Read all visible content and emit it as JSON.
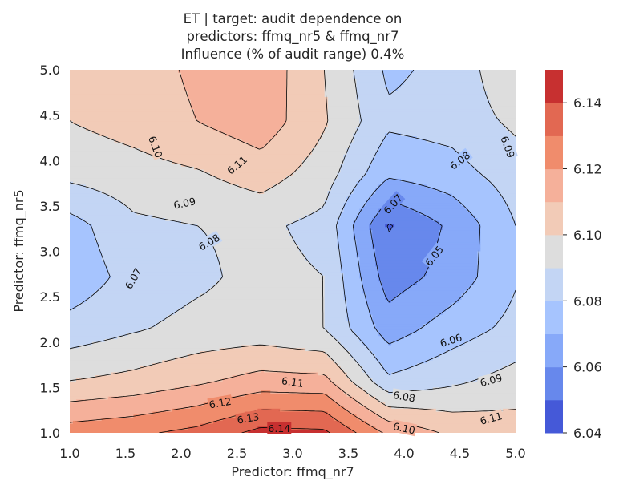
{
  "chart_data": {
    "type": "contour",
    "title": [
      "ET | target: audit dependence on",
      "predictors: ffmq_nr5 & ffmq_nr7",
      "Influence (% of audit range) 0.4%"
    ],
    "xlabel": "Predictor: ffmq_nr7",
    "ylabel": "Predictor: ffmq_nr5",
    "xlim": [
      1.0,
      5.0
    ],
    "ylim": [
      1.0,
      5.0
    ],
    "xticks": [
      "1.0",
      "1.5",
      "2.0",
      "2.5",
      "3.0",
      "3.5",
      "4.0",
      "4.5",
      "5.0"
    ],
    "yticks": [
      "1.0",
      "1.5",
      "2.0",
      "2.5",
      "3.0",
      "3.5",
      "4.0",
      "4.5",
      "5.0"
    ],
    "grid_x": [
      1.0,
      1.5714,
      2.1429,
      2.7143,
      3.2857,
      3.8571,
      4.4286,
      5.0
    ],
    "grid_y": [
      1.0,
      1.5714,
      2.1429,
      2.7143,
      3.2857,
      3.8571,
      4.4286,
      5.0
    ],
    "z": [
      [
        6.125,
        6.128,
        6.133,
        6.143,
        6.142,
        6.118,
        6.108,
        6.105
      ],
      [
        6.1,
        6.103,
        6.108,
        6.114,
        6.113,
        6.082,
        6.088,
        6.094
      ],
      [
        6.084,
        6.089,
        6.093,
        6.094,
        6.09,
        6.065,
        6.075,
        6.083
      ],
      [
        6.073,
        6.084,
        6.088,
        6.093,
        6.09,
        6.055,
        6.064,
        6.079
      ],
      [
        6.076,
        6.088,
        6.09,
        6.092,
        6.087,
        6.049,
        6.062,
        6.08
      ],
      [
        6.093,
        6.096,
        6.099,
        6.105,
        6.095,
        6.072,
        6.076,
        6.085
      ],
      [
        6.1,
        6.104,
        6.11,
        6.116,
        6.101,
        6.082,
        6.084,
        6.092
      ],
      [
        6.101,
        6.105,
        6.112,
        6.117,
        6.1,
        6.078,
        6.083,
        6.099
      ]
    ],
    "levels": [
      6.04,
      6.05,
      6.06,
      6.07,
      6.08,
      6.09,
      6.1,
      6.11,
      6.12,
      6.13,
      6.14,
      6.15
    ],
    "level_colors": [
      "#4559d8",
      "#6788ec",
      "#87a9f9",
      "#a6c4fe",
      "#c3d5f4",
      "#dddddd",
      "#f2cbb7",
      "#f5b09a",
      "#f08c6c",
      "#e26852",
      "#c73030"
    ],
    "contour_labels": [
      {
        "text": "6.14",
        "x": 2.88,
        "y": 1.05,
        "angle": 0
      },
      {
        "text": "6.13",
        "x": 2.6,
        "y": 1.16,
        "angle": -10
      },
      {
        "text": "6.12",
        "x": 2.35,
        "y": 1.33,
        "angle": -10
      },
      {
        "text": "6.11",
        "x": 3.0,
        "y": 1.56,
        "angle": 8
      },
      {
        "text": "6.10",
        "x": 4.0,
        "y": 1.05,
        "angle": 12
      },
      {
        "text": "6.08",
        "x": 4.0,
        "y": 1.4,
        "angle": 10
      },
      {
        "text": "6.09",
        "x": 4.78,
        "y": 1.58,
        "angle": -15
      },
      {
        "text": "6.11",
        "x": 4.78,
        "y": 1.16,
        "angle": -15
      },
      {
        "text": "6.06",
        "x": 4.42,
        "y": 2.02,
        "angle": -18
      },
      {
        "text": "6.05",
        "x": 4.27,
        "y": 2.95,
        "angle": -52
      },
      {
        "text": "6.07",
        "x": 3.9,
        "y": 3.52,
        "angle": -48
      },
      {
        "text": "6.08",
        "x": 4.5,
        "y": 4.0,
        "angle": -38
      },
      {
        "text": "6.09",
        "x": 4.93,
        "y": 4.15,
        "angle": 70
      },
      {
        "text": "6.10",
        "x": 1.77,
        "y": 4.15,
        "angle": 70
      },
      {
        "text": "6.11",
        "x": 2.5,
        "y": 3.95,
        "angle": -40
      },
      {
        "text": "6.09",
        "x": 2.03,
        "y": 3.53,
        "angle": -12
      },
      {
        "text": "6.08",
        "x": 2.25,
        "y": 3.1,
        "angle": -30
      },
      {
        "text": "6.07",
        "x": 1.57,
        "y": 2.7,
        "angle": -60
      }
    ],
    "colorbar": {
      "ticks": [
        "6.04",
        "6.06",
        "6.08",
        "6.10",
        "6.12",
        "6.14"
      ],
      "range": [
        6.04,
        6.15
      ]
    }
  }
}
